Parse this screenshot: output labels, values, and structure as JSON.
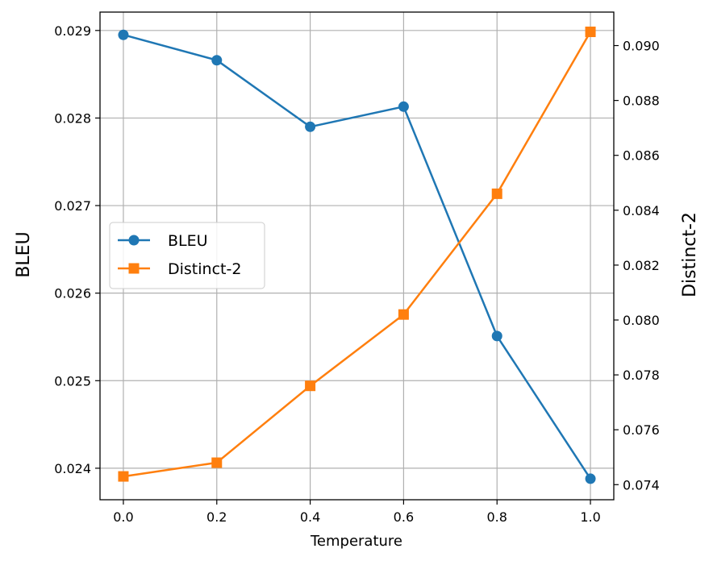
{
  "chart_data": {
    "type": "line",
    "title": "",
    "xlabel": "Temperature",
    "ylabel_left": "BLEU",
    "ylabel_right": "Distinct-2",
    "x": [
      0.0,
      0.2,
      0.4,
      0.6,
      0.8,
      1.0
    ],
    "x_ticks": [
      "0.0",
      "0.2",
      "0.4",
      "0.6",
      "0.8",
      "1.0"
    ],
    "xlim": [
      -0.05,
      1.05
    ],
    "grid": true,
    "legend_position": "center-left",
    "left_axis": {
      "ylim": [
        0.02364,
        0.02921
      ],
      "ticks": [
        0.024,
        0.025,
        0.026,
        0.027,
        0.028,
        0.029
      ],
      "tick_labels": [
        "0.024",
        "0.025",
        "0.026",
        "0.027",
        "0.028",
        "0.029"
      ]
    },
    "right_axis": {
      "ylim": [
        0.07345,
        0.09122
      ],
      "ticks": [
        0.074,
        0.076,
        0.078,
        0.08,
        0.082,
        0.084,
        0.086,
        0.088,
        0.09
      ],
      "tick_labels": [
        "0.074",
        "0.076",
        "0.078",
        "0.080",
        "0.082",
        "0.084",
        "0.086",
        "0.088",
        "0.090"
      ]
    },
    "series": [
      {
        "name": "BLEU",
        "axis": "left",
        "color": "#1f77b4",
        "marker": "circle",
        "values": [
          0.02895,
          0.02866,
          0.0279,
          0.02813,
          0.02551,
          0.02388
        ]
      },
      {
        "name": "Distinct-2",
        "axis": "right",
        "color": "#ff7f0e",
        "marker": "square",
        "values": [
          0.0743,
          0.0748,
          0.0776,
          0.0802,
          0.0846,
          0.0905
        ]
      }
    ]
  }
}
